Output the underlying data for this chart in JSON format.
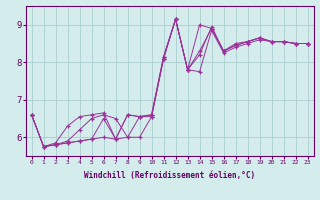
{
  "background_color": "#d4ecec",
  "grid_color": "#aacece",
  "line_color": "#993399",
  "marker_color": "#993399",
  "xlabel": "Windchill (Refroidissement éolien,°C)",
  "xlabel_color": "#660066",
  "tick_color": "#660066",
  "xlim": [
    -0.5,
    23.5
  ],
  "ylim": [
    5.5,
    9.5
  ],
  "yticks": [
    6,
    7,
    8,
    9
  ],
  "xticks": [
    0,
    1,
    2,
    3,
    4,
    5,
    6,
    7,
    8,
    9,
    10,
    11,
    12,
    13,
    14,
    15,
    16,
    17,
    18,
    19,
    20,
    21,
    22,
    23
  ],
  "series": [
    [
      6.6,
      5.75,
      5.8,
      5.85,
      5.9,
      5.95,
      6.0,
      5.95,
      6.0,
      6.0,
      6.55,
      8.1,
      9.15,
      7.8,
      7.75,
      8.85,
      8.25,
      8.4,
      8.5,
      8.6,
      8.55,
      8.55,
      8.5,
      8.5
    ],
    [
      6.6,
      5.75,
      5.8,
      5.85,
      5.9,
      5.95,
      6.5,
      5.95,
      6.6,
      6.55,
      6.55,
      8.1,
      9.15,
      7.8,
      8.3,
      8.9,
      8.3,
      8.45,
      8.55,
      8.65,
      8.55,
      8.55,
      8.5,
      8.5
    ],
    [
      6.6,
      5.75,
      5.8,
      5.9,
      6.2,
      6.5,
      6.6,
      6.5,
      6.0,
      6.55,
      6.6,
      8.15,
      9.15,
      7.8,
      8.2,
      8.95,
      8.3,
      8.45,
      8.55,
      8.65,
      8.55,
      8.55,
      8.5,
      8.5
    ],
    [
      6.6,
      5.75,
      5.85,
      6.3,
      6.55,
      6.6,
      6.65,
      5.95,
      6.6,
      6.55,
      6.6,
      8.15,
      9.15,
      7.8,
      9.0,
      8.9,
      8.3,
      8.5,
      8.55,
      8.65,
      8.55,
      8.55,
      8.5,
      8.5
    ]
  ]
}
